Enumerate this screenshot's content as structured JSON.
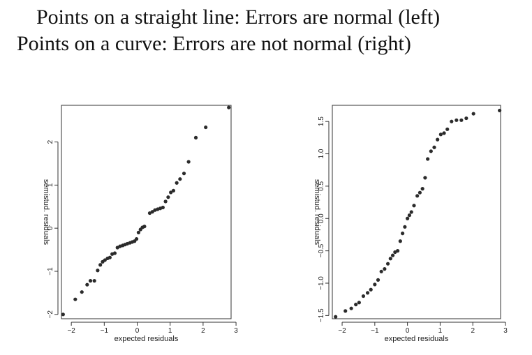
{
  "headline": {
    "line1": "Points on a straight line: Errors are normal (left)",
    "line2": "Points on a curve: Errors are not normal (right)"
  },
  "colors": {
    "points": "#2b2b2b",
    "axes": "#333333",
    "text": "#111111"
  },
  "chart_data": [
    {
      "type": "scatter",
      "title": "",
      "xlabel": "expected residuals",
      "ylabel": "semistud. residuals",
      "xlim": [
        -2.3,
        2.85
      ],
      "ylim": [
        -2.1,
        2.85
      ],
      "xticks": [
        -2,
        -1,
        0,
        1,
        2,
        3
      ],
      "yticks": [
        -2,
        -1,
        0,
        1,
        2
      ],
      "grid": false,
      "points": [
        [
          -2.25,
          -2.0
        ],
        [
          -1.88,
          -1.65
        ],
        [
          -1.68,
          -1.48
        ],
        [
          -1.52,
          -1.31
        ],
        [
          -1.42,
          -1.22
        ],
        [
          -1.3,
          -1.22
        ],
        [
          -1.2,
          -0.98
        ],
        [
          -1.12,
          -0.85
        ],
        [
          -1.05,
          -0.78
        ],
        [
          -0.98,
          -0.74
        ],
        [
          -0.9,
          -0.7
        ],
        [
          -0.83,
          -0.68
        ],
        [
          -0.76,
          -0.6
        ],
        [
          -0.68,
          -0.58
        ],
        [
          -0.6,
          -0.45
        ],
        [
          -0.52,
          -0.42
        ],
        [
          -0.44,
          -0.4
        ],
        [
          -0.37,
          -0.38
        ],
        [
          -0.3,
          -0.36
        ],
        [
          -0.22,
          -0.34
        ],
        [
          -0.15,
          -0.32
        ],
        [
          -0.08,
          -0.3
        ],
        [
          -0.02,
          -0.25
        ],
        [
          0.04,
          -0.1
        ],
        [
          0.1,
          -0.03
        ],
        [
          0.16,
          0.02
        ],
        [
          0.22,
          0.04
        ],
        [
          0.38,
          0.35
        ],
        [
          0.46,
          0.38
        ],
        [
          0.54,
          0.42
        ],
        [
          0.62,
          0.44
        ],
        [
          0.7,
          0.46
        ],
        [
          0.78,
          0.48
        ],
        [
          0.86,
          0.62
        ],
        [
          0.94,
          0.72
        ],
        [
          1.02,
          0.83
        ],
        [
          1.1,
          0.87
        ],
        [
          1.2,
          1.05
        ],
        [
          1.3,
          1.14
        ],
        [
          1.42,
          1.27
        ],
        [
          1.56,
          1.54
        ],
        [
          1.78,
          2.1
        ],
        [
          2.08,
          2.34
        ],
        [
          2.78,
          2.8
        ]
      ]
    },
    {
      "type": "scatter",
      "title": "",
      "xlabel": "expected residuals",
      "ylabel": "semistud. residuals",
      "xlim": [
        -2.3,
        2.85
      ],
      "ylim": [
        -1.55,
        1.75
      ],
      "xticks": [
        -2,
        -1,
        0,
        1,
        2,
        3
      ],
      "yticks": [
        -1.5,
        -1.0,
        -0.5,
        0.0,
        0.5,
        1.0,
        1.5
      ],
      "ytick_labels": [
        "−1.5",
        "−1.0",
        "−0.5",
        "0.0",
        "0.5",
        "1.0",
        "1.5"
      ],
      "grid": false,
      "points": [
        [
          -2.2,
          -1.52
        ],
        [
          -1.9,
          -1.43
        ],
        [
          -1.72,
          -1.39
        ],
        [
          -1.58,
          -1.33
        ],
        [
          -1.48,
          -1.3
        ],
        [
          -1.35,
          -1.2
        ],
        [
          -1.22,
          -1.15
        ],
        [
          -1.12,
          -1.1
        ],
        [
          -1.0,
          -1.02
        ],
        [
          -0.9,
          -0.95
        ],
        [
          -0.8,
          -0.82
        ],
        [
          -0.7,
          -0.78
        ],
        [
          -0.6,
          -0.7
        ],
        [
          -0.52,
          -0.62
        ],
        [
          -0.45,
          -0.57
        ],
        [
          -0.38,
          -0.52
        ],
        [
          -0.3,
          -0.5
        ],
        [
          -0.22,
          -0.35
        ],
        [
          -0.15,
          -0.23
        ],
        [
          -0.08,
          -0.13
        ],
        [
          0.0,
          0.0
        ],
        [
          0.06,
          0.05
        ],
        [
          0.12,
          0.1
        ],
        [
          0.2,
          0.2
        ],
        [
          0.3,
          0.35
        ],
        [
          0.38,
          0.4
        ],
        [
          0.46,
          0.46
        ],
        [
          0.54,
          0.63
        ],
        [
          0.62,
          0.92
        ],
        [
          0.72,
          1.04
        ],
        [
          0.82,
          1.1
        ],
        [
          0.92,
          1.22
        ],
        [
          1.02,
          1.3
        ],
        [
          1.12,
          1.32
        ],
        [
          1.22,
          1.38
        ],
        [
          1.35,
          1.5
        ],
        [
          1.5,
          1.52
        ],
        [
          1.65,
          1.52
        ],
        [
          1.8,
          1.55
        ],
        [
          2.02,
          1.62
        ],
        [
          2.82,
          1.67
        ]
      ]
    }
  ]
}
